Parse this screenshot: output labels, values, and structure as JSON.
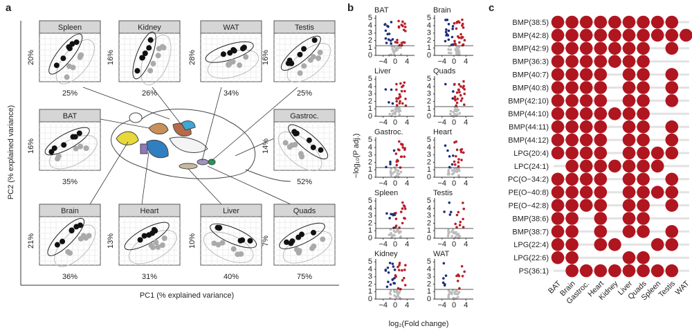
{
  "panel_labels": [
    "a",
    "b",
    "c"
  ],
  "pca": {
    "xlabel": "PC1 (% explained variance)",
    "ylabel": "PC2 (% explained variance)",
    "tissues": [
      {
        "name": "Spleen",
        "pc1": "25%",
        "pc2": "20%"
      },
      {
        "name": "Kidney",
        "pc1": "26%",
        "pc2": "16%"
      },
      {
        "name": "WAT",
        "pc1": "34%",
        "pc2": "28%"
      },
      {
        "name": "Testis",
        "pc1": "25%",
        "pc2": "16%"
      },
      {
        "name": "BAT",
        "pc1": "35%",
        "pc2": "16%"
      },
      {
        "name": "Gastroc.",
        "pc1": "52%",
        "pc2": "14%"
      },
      {
        "name": "Brain",
        "pc1": "36%",
        "pc2": "21%"
      },
      {
        "name": "Heart",
        "pc1": "31%",
        "pc2": "13%"
      },
      {
        "name": "Liver",
        "pc1": "40%",
        "pc2": "10%"
      },
      {
        "name": "Quads",
        "pc1": "75%",
        "pc2": "7%"
      }
    ]
  },
  "volcano": {
    "xlabel": "log₂(Fold change)",
    "ylabel": "−log₁₀(P adj.)",
    "xlim": [
      -6.5,
      6.5
    ],
    "ylim": [
      0,
      5.4
    ],
    "xticks": [
      {
        "value": -4,
        "label": "−4"
      },
      0,
      4
    ],
    "yticks": [
      0,
      1,
      2,
      3,
      4,
      5
    ],
    "threshold": 1.3,
    "panels": [
      "BAT",
      "Brain",
      "Liver",
      "Quads",
      "Gastroc.",
      "Heart",
      "Spleen",
      "Testis",
      "Kidney",
      "WAT"
    ]
  },
  "dot_matrix": {
    "columns": [
      "BAT",
      "Brain",
      "Gastroc.",
      "Heart",
      "Kidney",
      "Liver",
      "Quads",
      "Spleen",
      "Testis",
      "WAT"
    ],
    "rows": [
      "BMP(38:5)",
      "BMP(42:8)",
      "BMP(42:9)",
      "BMP(36:3)",
      "BMP(40:7)",
      "BMP(40:8)",
      "BMP(42:10)",
      "BMP(44:10)",
      "BMP(44:11)",
      "BMP(44:12)",
      "LPG(20:4)",
      "LPC(24:1)",
      "PC(O−34:2)",
      "PE(O−40:8)",
      "PE(O−42:8)",
      "BMP(38:6)",
      "BMP(38:7)",
      "LPG(22:4)",
      "LPG(22:6)",
      "PS(36:1)"
    ],
    "color": "#b0161f",
    "values": [
      [
        1,
        1,
        1,
        1,
        1,
        1,
        1,
        1,
        1,
        0
      ],
      [
        1,
        1,
        1,
        1,
        1,
        1,
        1,
        1,
        1,
        1
      ],
      [
        1,
        1,
        1,
        1,
        1,
        1,
        1,
        0,
        1,
        0
      ],
      [
        1,
        1,
        1,
        1,
        1,
        1,
        1,
        0,
        0,
        0
      ],
      [
        1,
        1,
        1,
        1,
        0,
        1,
        1,
        0,
        1,
        0
      ],
      [
        1,
        1,
        1,
        1,
        0,
        1,
        1,
        0,
        1,
        0
      ],
      [
        1,
        1,
        1,
        1,
        0,
        1,
        1,
        0,
        1,
        0
      ],
      [
        1,
        1,
        1,
        1,
        1,
        1,
        1,
        0,
        0,
        0
      ],
      [
        1,
        1,
        1,
        1,
        0,
        1,
        1,
        0,
        1,
        0
      ],
      [
        1,
        1,
        1,
        1,
        0,
        1,
        1,
        0,
        1,
        0
      ],
      [
        1,
        1,
        1,
        1,
        0,
        1,
        1,
        1,
        1,
        0
      ],
      [
        0,
        1,
        1,
        1,
        1,
        1,
        1,
        1,
        0,
        0
      ],
      [
        1,
        1,
        1,
        1,
        0,
        1,
        1,
        0,
        1,
        0
      ],
      [
        1,
        1,
        1,
        1,
        0,
        1,
        1,
        1,
        1,
        0
      ],
      [
        1,
        1,
        1,
        1,
        0,
        1,
        1,
        0,
        1,
        0
      ],
      [
        1,
        1,
        0,
        1,
        0,
        1,
        1,
        0,
        0,
        0
      ],
      [
        1,
        1,
        0,
        1,
        0,
        1,
        1,
        0,
        1,
        0
      ],
      [
        1,
        1,
        0,
        1,
        1,
        0,
        0,
        1,
        1,
        0
      ],
      [
        1,
        1,
        0,
        0,
        0,
        1,
        1,
        0,
        0,
        0
      ],
      [
        0,
        1,
        1,
        1,
        1,
        1,
        1,
        1,
        1,
        0
      ]
    ]
  }
}
